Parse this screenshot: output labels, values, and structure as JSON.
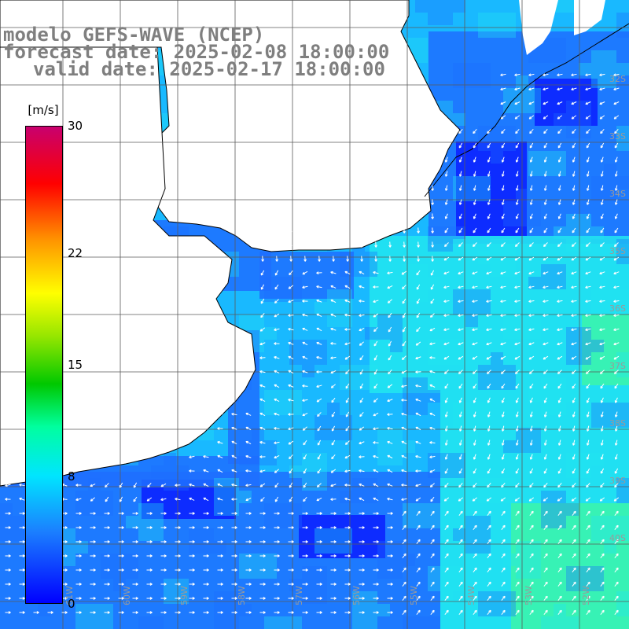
{
  "title": {
    "line1": "modelo GEFS-WAVE (NCEP)",
    "line2": "forecast date: 2025-02-08 18:00:00",
    "line3": "valid date: 2025-02-17 18:00:00"
  },
  "colorbar": {
    "units": "[m/s]",
    "min": 0,
    "max": 30,
    "ticks": [
      {
        "value": 30,
        "label": "30"
      },
      {
        "value": 22,
        "label": "22"
      },
      {
        "value": 15,
        "label": "15"
      },
      {
        "value": 8,
        "label": "8"
      },
      {
        "value": 0,
        "label": "0"
      }
    ]
  },
  "map": {
    "latitude_labels": [
      "32S",
      "33S",
      "34S",
      "35S",
      "36S",
      "37S",
      "38S",
      "39S",
      "40S"
    ],
    "longitude_labels": [
      "61W",
      "60W",
      "59W",
      "58W",
      "57W",
      "56W",
      "55W",
      "54W",
      "53W",
      "52W"
    ],
    "land_color": "#ffffff",
    "arrow_color": "#ffffff",
    "field_colors": {
      "calm": "#0a1eff",
      "light": "#1e6eff",
      "moderate": "#19b9ff",
      "fresh": "#22e6f0",
      "strong": "#3cf5aa"
    }
  }
}
